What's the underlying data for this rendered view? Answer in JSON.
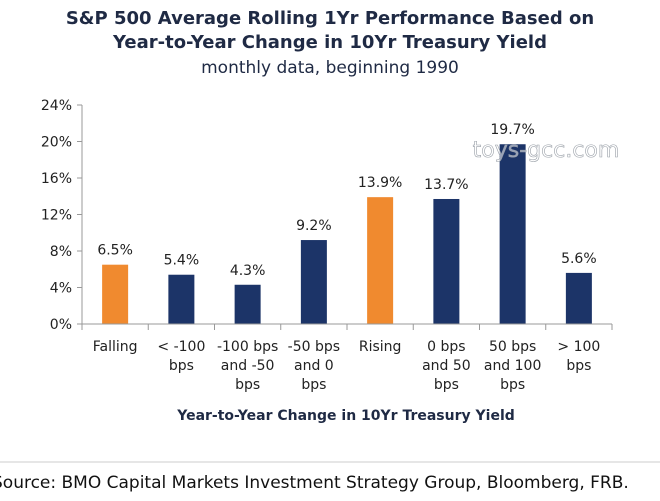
{
  "chart_data": {
    "type": "bar",
    "title_lines": [
      "S&P 500 Average Rolling 1Yr Performance Based on",
      "Year-to-Year Change in 10Yr Treasury Yield"
    ],
    "subtitle": "monthly data, beginning 1990",
    "categories": [
      [
        "Falling"
      ],
      [
        "< -100",
        "bps"
      ],
      [
        "-100 bps",
        "and -50",
        "bps"
      ],
      [
        "-50 bps",
        "and 0",
        "bps"
      ],
      [
        "Rising"
      ],
      [
        "0 bps",
        "and 50",
        "bps"
      ],
      [
        "50 bps",
        "and 100",
        "bps"
      ],
      [
        "> 100",
        "bps"
      ]
    ],
    "values": [
      6.5,
      5.4,
      4.3,
      9.2,
      13.9,
      13.7,
      19.7,
      5.6
    ],
    "value_labels": [
      "6.5%",
      "5.4%",
      "4.3%",
      "9.2%",
      "13.9%",
      "13.7%",
      "19.7%",
      "5.6%"
    ],
    "bar_colors": [
      "#f08a2f",
      "#1c3468",
      "#1c3468",
      "#1c3468",
      "#f08a2f",
      "#1c3468",
      "#1c3468",
      "#1c3468"
    ],
    "ylim": [
      0,
      24
    ],
    "yticks": [
      0,
      4,
      8,
      12,
      16,
      20,
      24
    ],
    "ytick_labels": [
      "0%",
      "4%",
      "8%",
      "12%",
      "16%",
      "20%",
      "24%"
    ],
    "xlabel": "Year-to-Year Change in 10Yr Treasury Yield",
    "ylabel": ""
  },
  "watermark": "toys-gcc.com",
  "source": "Source: BMO Capital Markets Investment Strategy Group, Bloomberg, FRB.",
  "colors": {
    "falling_rising": "#f08a2f",
    "bucket": "#1c3468",
    "axis": "#999999"
  }
}
